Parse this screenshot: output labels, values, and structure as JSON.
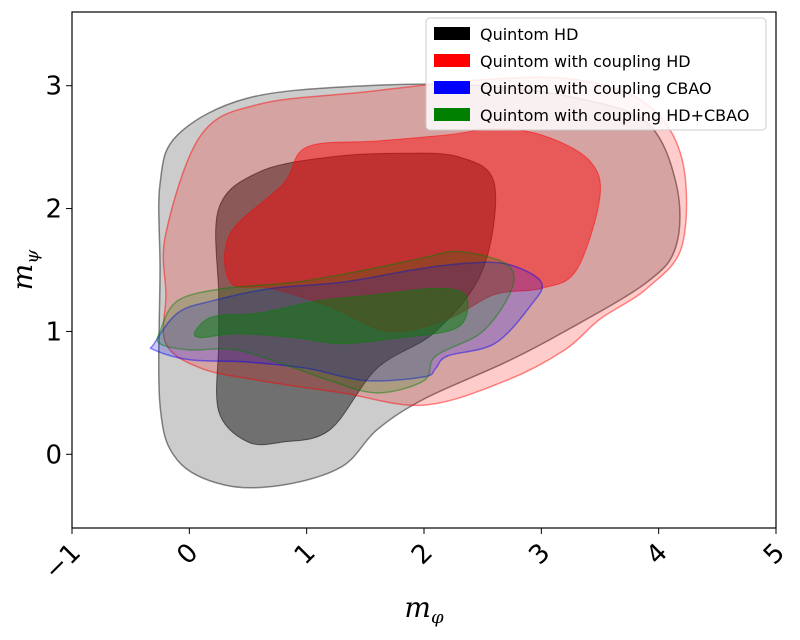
{
  "chart_data": {
    "type": "contour",
    "xlabel": "m_φ",
    "ylabel": "m_ψ",
    "xlabel_main": "m",
    "xlabel_sub": "φ",
    "ylabel_main": "m",
    "ylabel_sub": "ψ",
    "xlim": [
      -1,
      5
    ],
    "ylim": [
      -0.6,
      3.6
    ],
    "xticks": [
      -1,
      0,
      1,
      2,
      3,
      4,
      5
    ],
    "xtick_labels": [
      "−1",
      "0",
      "1",
      "2",
      "3",
      "4",
      "5"
    ],
    "yticks": [
      0,
      1,
      2,
      3
    ],
    "ytick_labels": [
      "0",
      "1",
      "2",
      "3"
    ],
    "grid": false,
    "legend_position": "top-right",
    "series": [
      {
        "name": "Quintom HD",
        "color": "#000000",
        "filled": true,
        "outer_contour": [
          [
            -0.1,
            2.6
          ],
          [
            0.5,
            2.9
          ],
          [
            1.5,
            3.0
          ],
          [
            2.5,
            3.0
          ],
          [
            3.3,
            2.9
          ],
          [
            3.9,
            2.7
          ],
          [
            4.15,
            2.2
          ],
          [
            4.15,
            1.7
          ],
          [
            3.9,
            1.4
          ],
          [
            3.2,
            1.0
          ],
          [
            2.7,
            0.75
          ],
          [
            2.0,
            0.45
          ],
          [
            1.6,
            0.2
          ],
          [
            1.3,
            -0.1
          ],
          [
            0.8,
            -0.25
          ],
          [
            0.3,
            -0.25
          ],
          [
            -0.1,
            -0.05
          ],
          [
            -0.25,
            0.4
          ],
          [
            -0.25,
            1.5
          ],
          [
            -0.25,
            2.2
          ]
        ],
        "inner_contour": [
          [
            0.25,
            1.3
          ],
          [
            0.25,
            2.0
          ],
          [
            0.6,
            2.3
          ],
          [
            1.2,
            2.42
          ],
          [
            1.8,
            2.45
          ],
          [
            2.3,
            2.42
          ],
          [
            2.6,
            2.2
          ],
          [
            2.5,
            1.5
          ],
          [
            2.1,
            1.0
          ],
          [
            1.6,
            0.7
          ],
          [
            1.2,
            0.2
          ],
          [
            0.8,
            0.1
          ],
          [
            0.5,
            0.1
          ],
          [
            0.25,
            0.35
          ],
          [
            0.25,
            0.9
          ]
        ]
      },
      {
        "name": "Quintom with coupling HD",
        "color": "#ff0000",
        "filled": true,
        "outer_contour": [
          [
            -0.2,
            1.8
          ],
          [
            0.1,
            2.6
          ],
          [
            0.6,
            2.85
          ],
          [
            1.5,
            2.95
          ],
          [
            2.5,
            3.05
          ],
          [
            3.3,
            3.05
          ],
          [
            3.9,
            2.85
          ],
          [
            4.2,
            2.4
          ],
          [
            4.2,
            1.7
          ],
          [
            3.9,
            1.35
          ],
          [
            3.5,
            1.1
          ],
          [
            3.2,
            0.85
          ],
          [
            2.7,
            0.6
          ],
          [
            2.0,
            0.4
          ],
          [
            1.3,
            0.5
          ],
          [
            0.6,
            0.6
          ],
          [
            0.1,
            0.7
          ],
          [
            -0.2,
            0.9
          ],
          [
            -0.2,
            1.3
          ]
        ],
        "inner_contour": [
          [
            0.35,
            1.4
          ],
          [
            0.35,
            1.8
          ],
          [
            0.8,
            2.2
          ],
          [
            1.0,
            2.5
          ],
          [
            1.6,
            2.55
          ],
          [
            2.2,
            2.6
          ],
          [
            2.6,
            2.65
          ],
          [
            3.0,
            2.6
          ],
          [
            3.4,
            2.4
          ],
          [
            3.5,
            2.1
          ],
          [
            3.3,
            1.5
          ],
          [
            3.0,
            1.35
          ],
          [
            2.6,
            1.3
          ],
          [
            2.2,
            1.1
          ],
          [
            1.7,
            1.0
          ],
          [
            1.2,
            1.2
          ],
          [
            0.7,
            1.35
          ]
        ]
      },
      {
        "name": "Quintom with coupling CBAO",
        "color": "#0000ff",
        "filled": true,
        "outer_contour": [
          [
            -0.3,
            0.9
          ],
          [
            -0.1,
            1.15
          ],
          [
            0.2,
            1.25
          ],
          [
            0.7,
            1.35
          ],
          [
            1.3,
            1.4
          ],
          [
            1.9,
            1.5
          ],
          [
            2.3,
            1.55
          ],
          [
            2.7,
            1.55
          ],
          [
            3.0,
            1.4
          ],
          [
            2.9,
            1.2
          ],
          [
            2.6,
            0.9
          ],
          [
            2.2,
            0.8
          ],
          [
            2.1,
            0.7
          ],
          [
            2.0,
            0.63
          ],
          [
            1.5,
            0.6
          ],
          [
            1.0,
            0.7
          ],
          [
            0.5,
            0.75
          ],
          [
            0.0,
            0.77
          ],
          [
            -0.3,
            0.85
          ]
        ]
      },
      {
        "name": "Quintom with coupling HD+CBAO",
        "color": "#008000",
        "filled": true,
        "outer_contour": [
          [
            -0.25,
            1.0
          ],
          [
            -0.1,
            1.25
          ],
          [
            0.3,
            1.35
          ],
          [
            0.9,
            1.4
          ],
          [
            1.5,
            1.5
          ],
          [
            2.0,
            1.6
          ],
          [
            2.3,
            1.65
          ],
          [
            2.7,
            1.55
          ],
          [
            2.75,
            1.35
          ],
          [
            2.5,
            1.0
          ],
          [
            2.1,
            0.8
          ],
          [
            2.0,
            0.6
          ],
          [
            1.6,
            0.5
          ],
          [
            1.2,
            0.6
          ],
          [
            0.9,
            0.7
          ],
          [
            0.4,
            0.85
          ],
          [
            0.0,
            0.85
          ],
          [
            -0.25,
            0.9
          ]
        ],
        "inner_contour": [
          [
            0.05,
            1.0
          ],
          [
            0.2,
            1.12
          ],
          [
            0.6,
            1.15
          ],
          [
            1.1,
            1.25
          ],
          [
            1.6,
            1.3
          ],
          [
            2.1,
            1.35
          ],
          [
            2.35,
            1.3
          ],
          [
            2.35,
            1.1
          ],
          [
            2.2,
            1.0
          ],
          [
            1.8,
            0.95
          ],
          [
            1.3,
            0.9
          ],
          [
            0.9,
            0.95
          ],
          [
            0.4,
            0.98
          ],
          [
            0.1,
            0.95
          ]
        ]
      }
    ]
  }
}
